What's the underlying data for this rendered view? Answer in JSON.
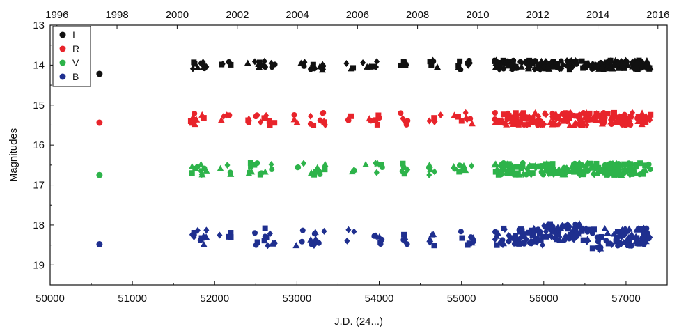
{
  "chart_data": {
    "type": "scatter",
    "xlabel": "J.D. (24...)",
    "ylabel": "Magnitudes",
    "xlim": [
      50000,
      57500
    ],
    "ylim": [
      13,
      19.5
    ],
    "y_inverted": true,
    "xticks": [
      50000,
      51000,
      52000,
      53000,
      54000,
      55000,
      56000,
      57000
    ],
    "yticks": [
      13,
      14,
      15,
      16,
      17,
      18,
      19
    ],
    "top_axis": {
      "label_positions_jd": [
        50083,
        50813,
        51544,
        52275,
        53005,
        53736,
        54466,
        55197,
        55927,
        56658,
        57388
      ],
      "labels": [
        "1996",
        "1998",
        "2000",
        "2002",
        "2004",
        "2006",
        "2008",
        "2010",
        "2012",
        "2014",
        "2016"
      ]
    },
    "legend_position": "top-left",
    "grid": false,
    "series": [
      {
        "name": "I",
        "color": "#111111",
        "mean": 14.0,
        "jitter": 0.12,
        "early_point": [
          50600,
          14.22
        ]
      },
      {
        "name": "R",
        "color": "#e8242b",
        "mean": 15.35,
        "jitter": 0.16,
        "early_point": [
          50600,
          15.44
        ]
      },
      {
        "name": "V",
        "color": "#2db34a",
        "mean": 16.6,
        "jitter": 0.15,
        "early_point": [
          50600,
          16.75
        ]
      },
      {
        "name": "B",
        "color": "#1f2f8f",
        "mean": 18.3,
        "jitter": 0.22,
        "early_point": [
          50600,
          18.48
        ]
      }
    ],
    "observing_seasons": [
      [
        51700,
        51900,
        10
      ],
      [
        52050,
        52200,
        4
      ],
      [
        52400,
        52750,
        12
      ],
      [
        52950,
        53100,
        3
      ],
      [
        53150,
        53350,
        9
      ],
      [
        53600,
        53700,
        3
      ],
      [
        53800,
        54050,
        6
      ],
      [
        54250,
        54350,
        5
      ],
      [
        54600,
        54750,
        5
      ],
      [
        54900,
        55150,
        8
      ],
      [
        55400,
        57300,
        200
      ]
    ]
  }
}
